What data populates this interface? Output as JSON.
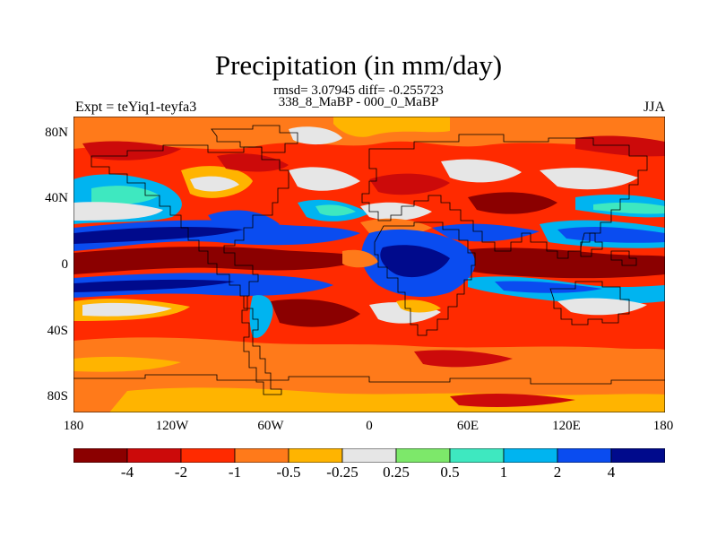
{
  "title": "Precipitation (in mm/day)",
  "subtitle": {
    "line1": "rmsd= 3.07945 diff= -0.255723",
    "line2": "338_8_MaBP - 000_0_MaBP"
  },
  "left_string": "Expt = teYiq1-teyfa3",
  "right_string": "JJA",
  "map_data": {
    "type": "filled-contour-map",
    "variable": "Precipitation difference",
    "units": "mm/day",
    "season": "JJA",
    "lat_range": [
      -90,
      90
    ],
    "lon_range": [
      -180,
      180
    ],
    "lat_ticks": [
      "80N",
      "40N",
      "0",
      "40S",
      "80S"
    ],
    "lon_ticks": [
      "180",
      "120W",
      "60W",
      "0",
      "60E",
      "120E",
      "180"
    ]
  },
  "colorbar": {
    "levels": [
      "-4",
      "-2",
      "-1",
      "-0.5",
      "-0.25",
      "0.25",
      "0.5",
      "1",
      "2",
      "4"
    ],
    "colors": [
      "#8b0000",
      "#cc0a0a",
      "#ff2a00",
      "#ff7a1a",
      "#ffb400",
      "#e6e6e6",
      "#7de86a",
      "#3ee8c0",
      "#00b4f0",
      "#0a4cf0",
      "#000a8c"
    ]
  }
}
